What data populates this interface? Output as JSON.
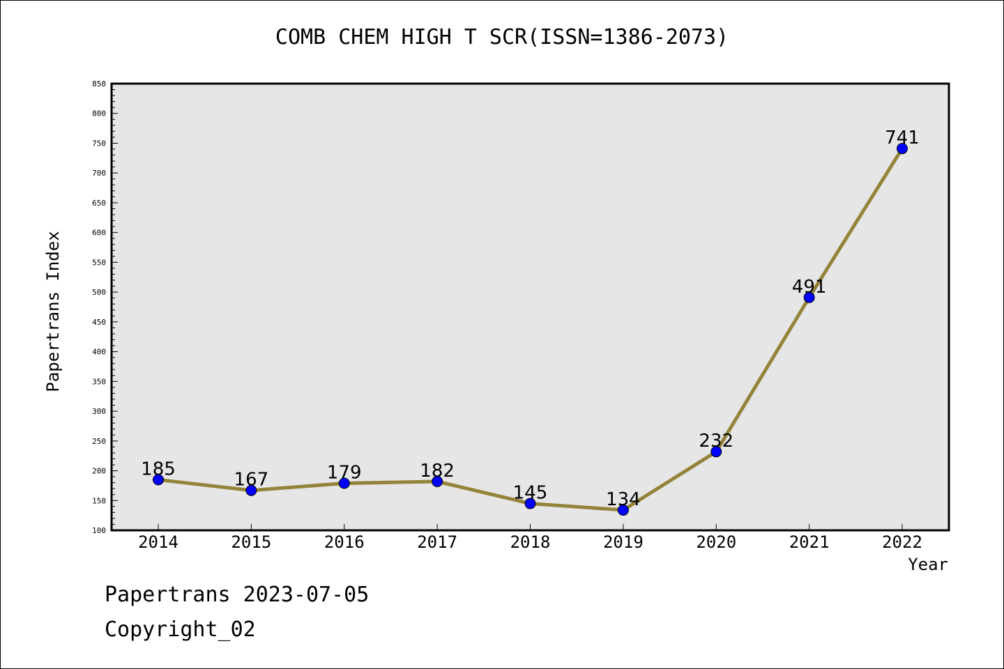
{
  "chart_data": {
    "type": "line",
    "title": "COMB CHEM HIGH T SCR(ISSN=1386-2073)",
    "xlabel": "Year",
    "ylabel": "Papertrans Index",
    "categories": [
      "2014",
      "2015",
      "2016",
      "2017",
      "2018",
      "2019",
      "2020",
      "2021",
      "2022"
    ],
    "series": [
      {
        "values": [
          185,
          167,
          179,
          182,
          145,
          134,
          232,
          491,
          741
        ]
      }
    ],
    "ylim": [
      100,
      850
    ],
    "yticks": [
      100,
      150,
      200,
      250,
      300,
      350,
      400,
      450,
      500,
      550,
      600,
      650,
      700,
      750,
      800,
      850
    ],
    "grid": false,
    "colors": {
      "plot_background": "#e6e6e6",
      "line": "#938439",
      "marker": "#0000ff"
    }
  },
  "footer": {
    "line1": "Papertrans 2023-07-05",
    "line2": "Copyright_02"
  }
}
